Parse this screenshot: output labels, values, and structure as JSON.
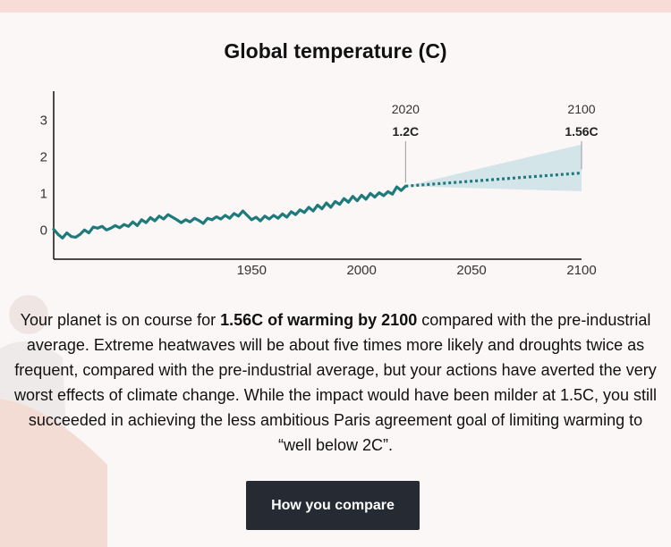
{
  "title": "Global temperature (C)",
  "summary": {
    "part1": "Your planet is on course for ",
    "bold": "1.56C of warming by 2100",
    "part2": " compared with the pre-industrial average. Extreme heatwaves will be about five times more likely and droughts twice as frequent, compared with the pre-industrial average, but your actions have averted the very worst effects of climate change. While the impact would have been milder at 1.5C, you still succeeded in achieving the less ambitious Paris agreement goal of limiting warming to “well below 2C”."
  },
  "button": {
    "label": "How you compare"
  },
  "colors": {
    "observed": "#1f7a7c",
    "projection": "#1f7a7c",
    "band": "#d3e5e9",
    "axis": "#111111"
  },
  "chart_data": {
    "type": "line",
    "title": "Global temperature (C)",
    "xlim": [
      1860,
      2100
    ],
    "ylim": [
      -0.8,
      3.8
    ],
    "x_ticks": [
      1950,
      2000,
      2050,
      2100
    ],
    "y_ticks": [
      0,
      1,
      2,
      3
    ],
    "observed": {
      "x": [
        1860,
        1862,
        1864,
        1866,
        1868,
        1870,
        1872,
        1874,
        1876,
        1878,
        1880,
        1882,
        1884,
        1886,
        1888,
        1890,
        1892,
        1894,
        1896,
        1898,
        1900,
        1902,
        1904,
        1906,
        1908,
        1910,
        1912,
        1914,
        1916,
        1918,
        1920,
        1922,
        1924,
        1926,
        1928,
        1930,
        1932,
        1934,
        1936,
        1938,
        1940,
        1942,
        1944,
        1946,
        1948,
        1950,
        1952,
        1954,
        1956,
        1958,
        1960,
        1962,
        1964,
        1966,
        1968,
        1970,
        1972,
        1974,
        1976,
        1978,
        1980,
        1982,
        1984,
        1986,
        1988,
        1990,
        1992,
        1994,
        1996,
        1998,
        2000,
        2002,
        2004,
        2006,
        2008,
        2010,
        2012,
        2014,
        2016,
        2018,
        2020
      ],
      "y": [
        0.02,
        -0.12,
        -0.22,
        -0.08,
        -0.18,
        -0.2,
        -0.12,
        0.0,
        -0.08,
        0.08,
        0.05,
        0.1,
        0.0,
        0.05,
        0.12,
        0.06,
        0.15,
        0.1,
        0.22,
        0.12,
        0.28,
        0.2,
        0.34,
        0.25,
        0.38,
        0.3,
        0.42,
        0.35,
        0.28,
        0.2,
        0.28,
        0.22,
        0.32,
        0.26,
        0.18,
        0.32,
        0.28,
        0.36,
        0.3,
        0.4,
        0.32,
        0.45,
        0.38,
        0.52,
        0.4,
        0.28,
        0.35,
        0.25,
        0.38,
        0.3,
        0.4,
        0.32,
        0.44,
        0.35,
        0.5,
        0.42,
        0.55,
        0.48,
        0.62,
        0.52,
        0.68,
        0.58,
        0.74,
        0.62,
        0.78,
        0.7,
        0.86,
        0.76,
        0.92,
        0.8,
        0.95,
        0.84,
        1.0,
        0.9,
        1.02,
        0.94,
        1.05,
        0.98,
        1.18,
        1.08,
        1.2
      ]
    },
    "projection": {
      "x": [
        2020,
        2100
      ],
      "y": [
        1.2,
        1.56
      ],
      "band_low": [
        1.2,
        1.06
      ],
      "band_high": [
        1.2,
        2.34
      ]
    },
    "annotations": [
      {
        "year": "2020",
        "value": "1.2C"
      },
      {
        "year": "2100",
        "value": "1.56C"
      }
    ]
  }
}
